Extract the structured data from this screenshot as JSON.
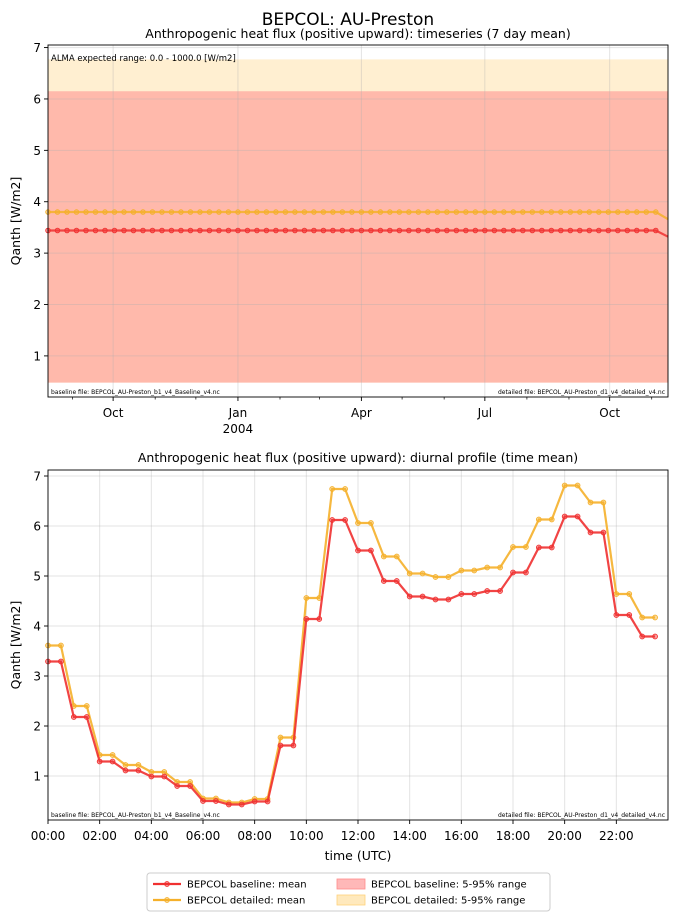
{
  "figure": {
    "title": "BEPCOL: AU-Preston"
  },
  "chart_data": [
    {
      "type": "line",
      "title": "Anthropogenic heat flux (positive upward): timeseries (7 day mean)",
      "xlabel": "",
      "ylabel": "Qanth [W/m2]",
      "xlim": [
        "2003-08-14",
        "2004-11-13"
      ],
      "ylim": [
        0.2,
        7.05
      ],
      "yticks": [
        1,
        2,
        3,
        4,
        5,
        6,
        7
      ],
      "xticks": [
        {
          "date": "2003-10-01",
          "label": "Oct",
          "sublabel": ""
        },
        {
          "date": "2004-01-01",
          "label": "Jan",
          "sublabel": "2004"
        },
        {
          "date": "2004-04-01",
          "label": "Apr",
          "sublabel": ""
        },
        {
          "date": "2004-07-01",
          "label": "Jul",
          "sublabel": ""
        },
        {
          "date": "2004-10-01",
          "label": "Oct",
          "sublabel": ""
        }
      ],
      "minor_xticks": [
        "2003-09-01",
        "2003-11-01",
        "2003-12-01",
        "2004-02-01",
        "2004-03-01",
        "2004-05-01",
        "2004-06-01",
        "2004-08-01",
        "2004-09-01",
        "2004-11-01"
      ],
      "grid": true,
      "range_note": "ALMA expected range: 0.0 - 1000.0 [W/m2]",
      "baseline_file": "baseline file: BEPCOL_AU-Preston_b1_v4_Baseline_v4.nc",
      "detailed_file": "detailed file: BEPCOL_AU-Preston_d1_v4_detailed_v4.nc",
      "bands": [
        {
          "series": "BEPCOL baseline",
          "low": 0.48,
          "high": 6.15,
          "color": "#ff8c8c"
        },
        {
          "series": "BEPCOL detailed",
          "low": 0.48,
          "high": 6.77,
          "color": "#ffd27a"
        }
      ],
      "series": [
        {
          "name": "BEPCOL baseline",
          "color": "#f03030",
          "value": 3.44,
          "end_value": 3.32,
          "start": "2003-08-14",
          "end": "2004-11-13",
          "step_days": 7
        },
        {
          "name": "BEPCOL detailed",
          "color": "#f5b02a",
          "value": 3.8,
          "end_value": 3.66,
          "start": "2003-08-14",
          "end": "2004-11-13",
          "step_days": 7
        }
      ]
    },
    {
      "type": "line",
      "title": "Anthropogenic heat flux (positive upward): diurnal profile (time mean)",
      "xlabel": "time (UTC)",
      "ylabel": "Qanth [W/m2]",
      "xlim": [
        0,
        24
      ],
      "ylim": [
        0.12,
        7.12
      ],
      "yticks": [
        1,
        2,
        3,
        4,
        5,
        6,
        7
      ],
      "xticks": [
        0,
        2,
        4,
        6,
        8,
        10,
        12,
        14,
        16,
        18,
        20,
        22
      ],
      "xtick_labels": [
        "00:00",
        "02:00",
        "04:00",
        "06:00",
        "08:00",
        "10:00",
        "12:00",
        "14:00",
        "16:00",
        "18:00",
        "20:00",
        "22:00"
      ],
      "grid": true,
      "baseline_file": "baseline file: BEPCOL_AU-Preston_b1_v4_Baseline_v4.nc",
      "detailed_file": "detailed file: BEPCOL_AU-Preston_d1_v4_detailed_v4.nc",
      "x": [
        0,
        0.5,
        1,
        1.5,
        2,
        2.5,
        3,
        3.5,
        4,
        4.5,
        5,
        5.5,
        6,
        6.5,
        7,
        7.5,
        8,
        8.5,
        9,
        9.5,
        10,
        10.5,
        11,
        11.5,
        12,
        12.5,
        13,
        13.5,
        14,
        14.5,
        15,
        15.5,
        16,
        16.5,
        17,
        17.5,
        18,
        18.5,
        19,
        19.5,
        20,
        20.5,
        21,
        21.5,
        22,
        22.5,
        23,
        23.5
      ],
      "series": [
        {
          "name": "BEPCOL baseline",
          "color": "#f03030",
          "values": [
            3.29,
            3.29,
            2.18,
            2.18,
            1.29,
            1.29,
            1.11,
            1.11,
            0.99,
            0.99,
            0.8,
            0.8,
            0.5,
            0.5,
            0.43,
            0.43,
            0.49,
            0.49,
            1.61,
            1.61,
            4.14,
            4.14,
            6.12,
            6.12,
            5.51,
            5.51,
            4.9,
            4.9,
            4.59,
            4.59,
            4.53,
            4.53,
            4.64,
            4.64,
            4.7,
            4.7,
            5.07,
            5.07,
            5.57,
            5.57,
            6.19,
            6.19,
            5.87,
            5.87,
            4.22,
            4.22,
            3.79,
            3.79
          ]
        },
        {
          "name": "BEPCOL detailed",
          "color": "#f5b02a",
          "values": [
            3.61,
            3.61,
            2.4,
            2.4,
            1.42,
            1.42,
            1.22,
            1.22,
            1.08,
            1.08,
            0.88,
            0.88,
            0.55,
            0.55,
            0.47,
            0.47,
            0.54,
            0.54,
            1.77,
            1.77,
            4.56,
            4.56,
            6.74,
            6.74,
            6.06,
            6.06,
            5.39,
            5.39,
            5.05,
            5.05,
            4.98,
            4.98,
            5.11,
            5.11,
            5.17,
            5.17,
            5.58,
            5.58,
            6.13,
            6.13,
            6.81,
            6.81,
            6.47,
            6.47,
            4.64,
            4.64,
            4.17,
            4.17
          ]
        }
      ]
    }
  ],
  "legend": {
    "placement": "bottom-center",
    "entries": [
      {
        "label": "BEPCOL baseline: mean",
        "kind": "line",
        "color": "#f03030"
      },
      {
        "label": "BEPCOL detailed: mean",
        "kind": "line",
        "color": "#f5b02a"
      },
      {
        "label": "BEPCOL baseline: 5-95% range",
        "kind": "patch",
        "color": "#ffb8b8",
        "edge": "#ff8c8c"
      },
      {
        "label": "BEPCOL detailed: 5-95% range",
        "kind": "patch",
        "color": "#ffe9bd",
        "edge": "#ffd27a"
      }
    ]
  }
}
